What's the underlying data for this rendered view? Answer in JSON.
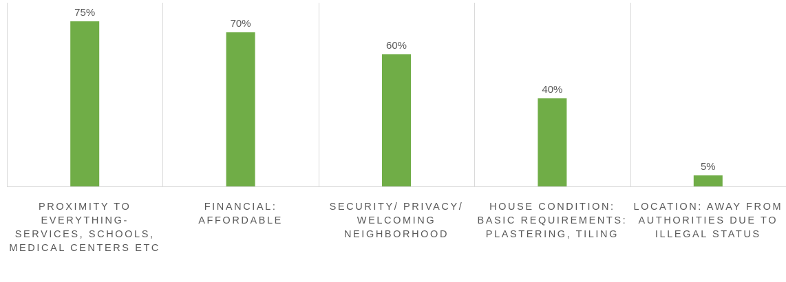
{
  "chart_data": {
    "type": "bar",
    "categories": [
      "PROXIMITY TO EVERYTHING- SERVICES, SCHOOLS, MEDICAL CENTERS ETC",
      "FINANCIAL: AFFORDABLE",
      "SECURITY/ PRIVACY/ WELCOMING NEIGHBORHOOD",
      "HOUSE CONDITION: BASIC REQUIREMENTS: PLASTERING, TILING",
      "LOCATION: AWAY FROM AUTHORITIES DUE TO ILLEGAL STATUS"
    ],
    "values": [
      75,
      70,
      60,
      40,
      5
    ],
    "value_labels": [
      "75%",
      "70%",
      "60%",
      "40%",
      "5%"
    ],
    "ylim": [
      0,
      80
    ],
    "bar_color": "#70AD47",
    "grid": false,
    "category_separators": true,
    "label_color": "#595959",
    "axis_color": "#D9D9D9"
  }
}
